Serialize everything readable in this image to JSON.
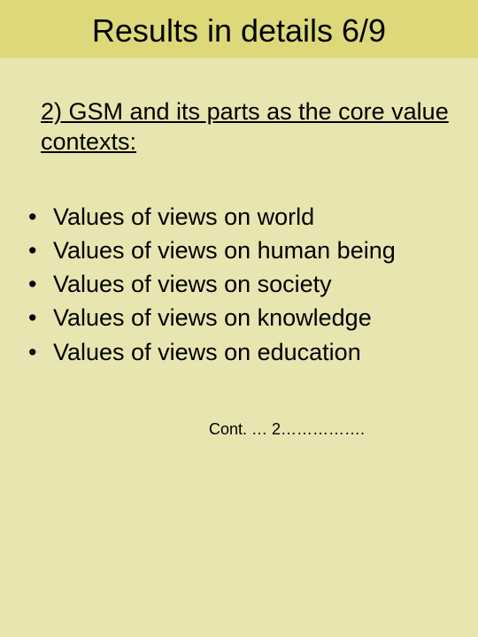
{
  "colors": {
    "background": "#e8e5b0",
    "title_bar": "#ddd97a",
    "text": "#000000"
  },
  "typography": {
    "title_fontsize": 36,
    "subtitle_fontsize": 27,
    "bullet_fontsize": 27,
    "footer_fontsize": 18,
    "font_family": "Arial"
  },
  "title": "Results in details 6/9",
  "subtitle": "2) GSM and its parts as the core value contexts:",
  "bullets": [
    "Values of views on world",
    "Values of views on human being",
    "Values of views on society",
    "Values of views on knowledge",
    "Values of views on education"
  ],
  "footer": "Cont. … 2……………."
}
